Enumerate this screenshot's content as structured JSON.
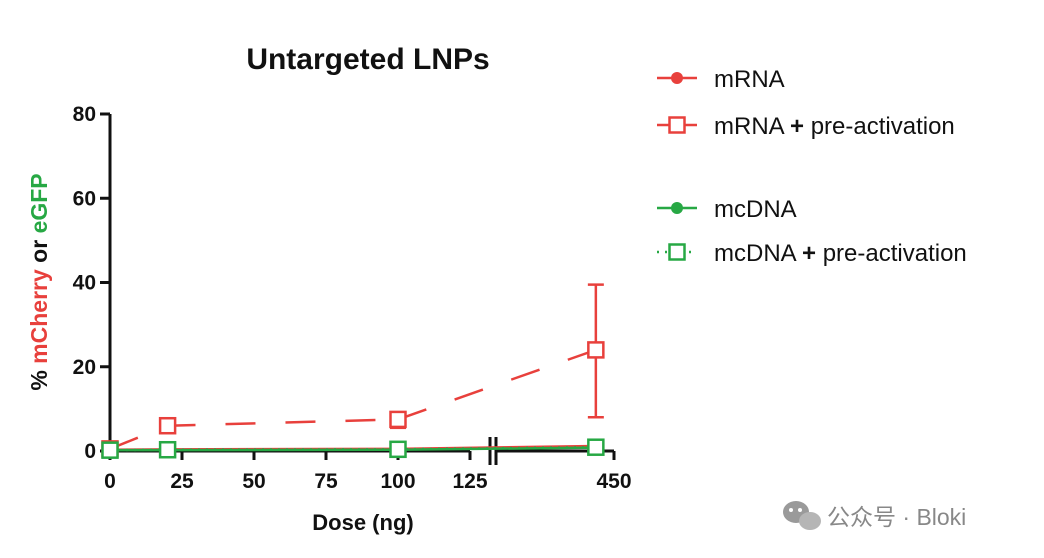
{
  "chart_data": {
    "type": "line",
    "title": "Untargeted LNPs",
    "xlabel": "Dose (ng)",
    "ylabel_parts": [
      "% ",
      "mCherry",
      " or ",
      "eGFP"
    ],
    "ylim": [
      0,
      80
    ],
    "yticks": [
      0,
      20,
      40,
      60,
      80
    ],
    "x_segments": [
      {
        "range": [
          0,
          125
        ],
        "ticks": [
          0,
          25,
          50,
          75,
          100,
          125
        ]
      },
      {
        "range": [
          0,
          450
        ],
        "ticks": [
          450
        ]
      }
    ],
    "axis_break": true,
    "series": [
      {
        "name": "mRNA",
        "legend": [
          "mRNA"
        ],
        "color": "#e8403c",
        "marker": "filled-circle",
        "line": "solid",
        "points": [
          {
            "x": 0,
            "y": 0.3
          },
          {
            "x": 20,
            "y": 0.4
          },
          {
            "x": 100,
            "y": 0.5
          },
          {
            "x": 400,
            "y": 1.2
          }
        ]
      },
      {
        "name": "mRNA + pre-activation",
        "legend": [
          "mRNA ",
          "+",
          " pre-activation"
        ],
        "color": "#e8403c",
        "marker": "open-square",
        "line": "dashed",
        "points": [
          {
            "x": 0,
            "y": 0.5
          },
          {
            "x": 20,
            "y": 6.0
          },
          {
            "x": 100,
            "y": 7.5,
            "err": [
              5.5,
              9.0
            ]
          },
          {
            "x": 400,
            "y": 24,
            "err": [
              8,
              39.5
            ]
          }
        ]
      },
      {
        "name": "mcDNA",
        "legend": [
          "mcDNA"
        ],
        "color": "#27a844",
        "marker": "filled-circle",
        "line": "solid",
        "points": [
          {
            "x": 0,
            "y": 0.2
          },
          {
            "x": 20,
            "y": 0.2
          },
          {
            "x": 100,
            "y": 0.3
          },
          {
            "x": 400,
            "y": 0.8
          }
        ]
      },
      {
        "name": "mcDNA + pre-activation",
        "legend": [
          "mcDNA ",
          "+",
          " pre-activation"
        ],
        "color": "#27a844",
        "marker": "open-square",
        "line": "dotted",
        "points": [
          {
            "x": 0,
            "y": 0.2
          },
          {
            "x": 20,
            "y": 0.3
          },
          {
            "x": 100,
            "y": 0.4
          },
          {
            "x": 400,
            "y": 0.9
          }
        ]
      }
    ]
  },
  "watermark": {
    "text": "公众号 · Bloki",
    "icon": "wechat-icon"
  }
}
